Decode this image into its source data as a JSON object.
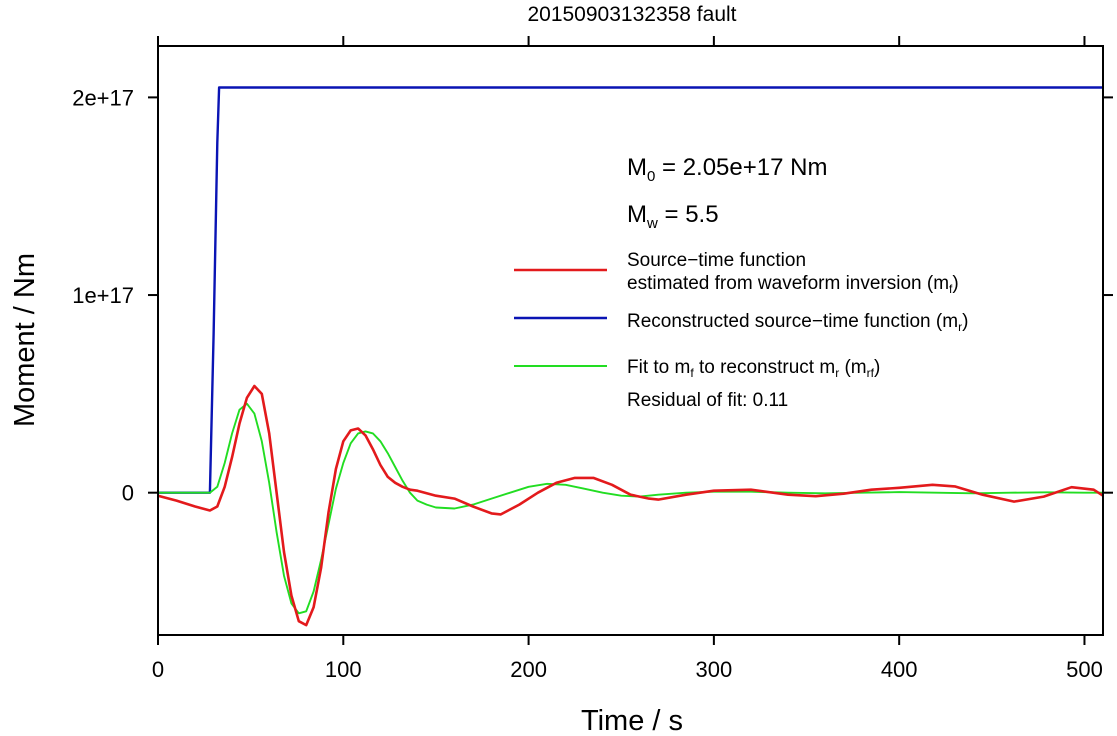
{
  "chart_data": {
    "type": "line",
    "title": "20150903132358 fault",
    "xlabel": "Time / s",
    "ylabel": "Moment / Nm",
    "xlim": [
      0,
      510
    ],
    "ylim": [
      -7.2e+16,
      2.26e+17
    ],
    "x_ticks": [
      0,
      100,
      200,
      300,
      400,
      500
    ],
    "x_tick_labels": [
      "0",
      "100",
      "200",
      "300",
      "400",
      "500"
    ],
    "y_ticks": [
      0,
      1e+17,
      2e+17
    ],
    "y_tick_labels": [
      "0",
      "1e+17",
      "2e+17"
    ],
    "grid": false,
    "legend_position": "right",
    "annotations": {
      "m0": {
        "sym": "M",
        "sub": "0",
        "text": " = 2.05e+17 Nm"
      },
      "mw": {
        "sym": "M",
        "sub": "w",
        "text": " = 5.5"
      },
      "residual": "Residual of fit: 0.11"
    },
    "legend": [
      {
        "color": "#e31a1c",
        "line1": "Source−time function",
        "line2_pre": "estimated from waveform inversion (m",
        "line2_sub": "f",
        "line2_post": ")"
      },
      {
        "color": "#0a14b4",
        "line1_pre": "Reconstructed source−time function (m",
        "line1_sub": "r",
        "line1_post": ")"
      },
      {
        "color": "#22dd22",
        "line1_pre": "Fit to m",
        "line1_sub1": "f",
        "line1_mid": " to reconstruct m",
        "line1_sub2": "r",
        "line1_mid2": " (m",
        "line1_sub3": "rf",
        "line1_post": ")"
      }
    ],
    "series": [
      {
        "name": "Source−time function estimated from waveform inversion (mf)",
        "color": "#e31a1c",
        "x": [
          0,
          10,
          20,
          28,
          32,
          36,
          40,
          44,
          48,
          52,
          56,
          60,
          64,
          68,
          72,
          76,
          80,
          84,
          88,
          92,
          96,
          100,
          104,
          108,
          112,
          116,
          120,
          124,
          128,
          132,
          136,
          140,
          150,
          160,
          170,
          180,
          185,
          195,
          205,
          215,
          225,
          235,
          245,
          255,
          265,
          270,
          285,
          300,
          320,
          340,
          355,
          370,
          385,
          400,
          418,
          430,
          445,
          462,
          478,
          493,
          505,
          510
        ],
        "y": [
          -1500000000000000.0,
          -4000000000000000.0,
          -7000000000000000.0,
          -9000000000000000.0,
          -7000000000000000.0,
          3000000000000000.0,
          1.8e+16,
          3.5e+16,
          4.8e+16,
          5.4e+16,
          5e+16,
          3e+16,
          0,
          -3e+16,
          -5.2e+16,
          -6.5e+16,
          -6.7e+16,
          -5.8e+16,
          -3.8e+16,
          -1e+16,
          1.2e+16,
          2.6e+16,
          3.15e+16,
          3.25e+16,
          2.9e+16,
          2.2e+16,
          1.4e+16,
          8000000000000000.0,
          5000000000000000.0,
          3000000000000000.0,
          1500000000000000.0,
          1000000000000000.0,
          -1500000000000000.0,
          -3000000000000000.0,
          -7000000000000000.0,
          -1.05e+16,
          -1.1e+16,
          -6000000000000000.0,
          0,
          5000000000000000.0,
          7500000000000000.0,
          7500000000000000.0,
          4000000000000000.0,
          -1000000000000000.0,
          -3000000000000000.0,
          -3500000000000000.0,
          -1000000000000000.0,
          1000000000000000.0,
          1500000000000000.0,
          -1000000000000000.0,
          -1800000000000000.0,
          -500000000000000.0,
          1500000000000000.0,
          2500000000000000.0,
          4000000000000000.0,
          3200000000000000.0,
          -1000000000000000.0,
          -4500000000000000.0,
          -2000000000000000.0,
          2800000000000000.0,
          1500000000000000.0,
          -1500000000000000.0
        ]
      },
      {
        "name": "Reconstructed source−time function (mr)",
        "color": "#0a14b4",
        "x": [
          0,
          28,
          30,
          32,
          33,
          510
        ],
        "y": [
          0,
          0,
          8e+16,
          1.77e+17,
          2.05e+17,
          2.05e+17
        ]
      },
      {
        "name": "Fit to mf to reconstruct mr (mrf)",
        "color": "#22dd22",
        "x": [
          0,
          28,
          32,
          36,
          40,
          44,
          48,
          52,
          56,
          60,
          64,
          68,
          72,
          76,
          80,
          84,
          88,
          92,
          96,
          100,
          104,
          108,
          112,
          116,
          120,
          124,
          128,
          132,
          136,
          140,
          145,
          150,
          160,
          170,
          180,
          190,
          200,
          210,
          220,
          230,
          240,
          250,
          260,
          270,
          285,
          300,
          320,
          340,
          360,
          380,
          400,
          420,
          440,
          460,
          480,
          500,
          510
        ],
        "y": [
          0,
          0,
          3000000000000000.0,
          1.5e+16,
          3e+16,
          4.2e+16,
          4.5e+16,
          4e+16,
          2.6e+16,
          5000000000000000.0,
          -2e+16,
          -4.2e+16,
          -5.6e+16,
          -6.1e+16,
          -6e+16,
          -5e+16,
          -3.4e+16,
          -1.6e+16,
          2000000000000000.0,
          1.5e+16,
          2.5e+16,
          3e+16,
          3.1e+16,
          3e+16,
          2.6e+16,
          2e+16,
          1.3e+16,
          6000000000000000.0,
          0,
          -4000000000000000.0,
          -6000000000000000.0,
          -7500000000000000.0,
          -8000000000000000.0,
          -6000000000000000.0,
          -3000000000000000.0,
          0,
          3000000000000000.0,
          4500000000000000.0,
          4000000000000000.0,
          2000000000000000.0,
          0,
          -1500000000000000.0,
          -2000000000000000.0,
          -1000000000000000.0,
          0,
          500000000000000.0,
          500000000000000.0,
          0,
          -300000000000000.0,
          0,
          300000000000000.0,
          0,
          -300000000000000.0,
          0,
          200000000000000.0,
          0,
          0
        ]
      }
    ]
  }
}
